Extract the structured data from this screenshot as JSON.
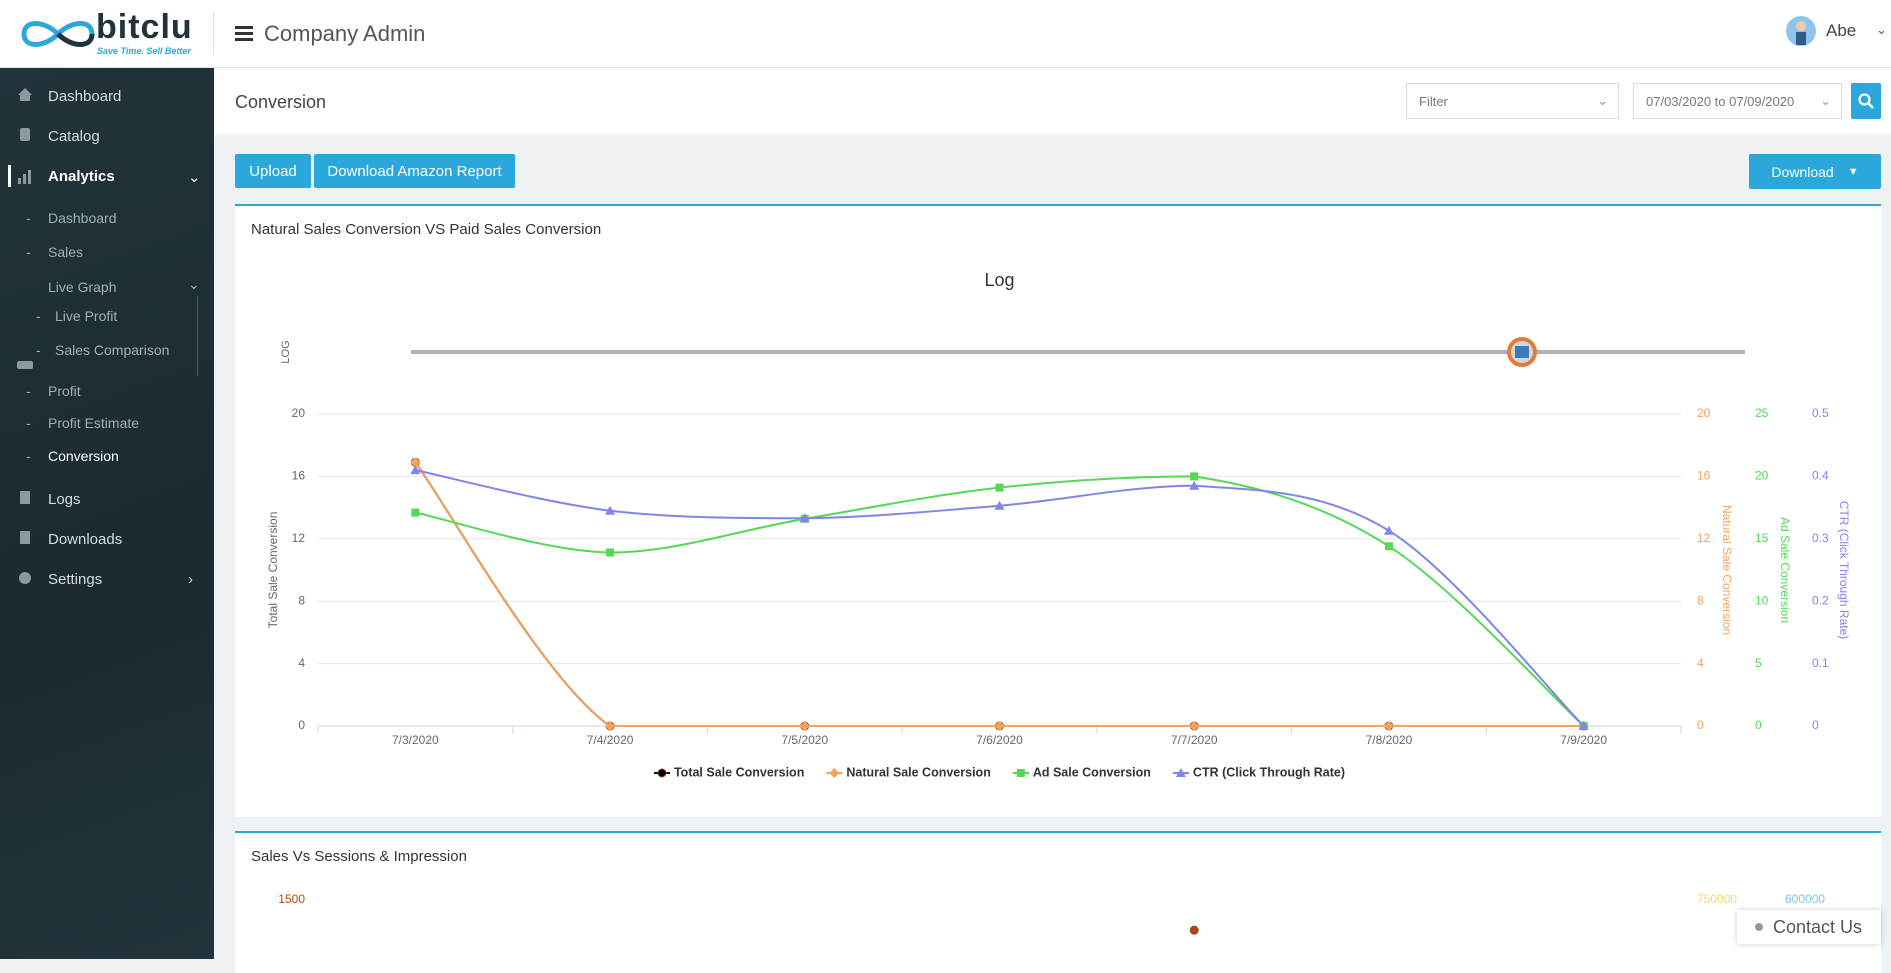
{
  "header": {
    "logo": "bitclu",
    "tagline": "Save Time. Sell Better",
    "title": "Company Admin",
    "user": "Abe"
  },
  "sidebar": {
    "items": [
      {
        "label": "Dashboard"
      },
      {
        "label": "Catalog"
      },
      {
        "label": "Analytics",
        "children": [
          {
            "label": "Dashboard"
          },
          {
            "label": "Sales"
          },
          {
            "label": "Live Graph",
            "children": [
              {
                "label": "Live Profit"
              },
              {
                "label": "Sales Comparison"
              }
            ]
          },
          {
            "label": "Profit"
          },
          {
            "label": "Profit Estimate"
          },
          {
            "label": "Conversion"
          }
        ]
      },
      {
        "label": "Logs"
      },
      {
        "label": "Downloads"
      },
      {
        "label": "Settings"
      }
    ]
  },
  "page": {
    "title": "Conversion",
    "filter": "Filter",
    "date_range": "07/03/2020 to 07/09/2020",
    "buttons": [
      "Upload",
      "Download Amazon Report"
    ],
    "download": "Download",
    "contact": "Contact Us"
  },
  "chart_data": [
    {
      "type": "line",
      "title": "Natural Sales Conversion VS Paid Sales Conversion",
      "subtitle": "Log",
      "slider_label": "LOG",
      "categories": [
        "7/3/2020",
        "7/4/2020",
        "7/5/2020",
        "7/6/2020",
        "7/7/2020",
        "7/8/2020",
        "7/9/2020"
      ],
      "ylabel": "Total Sale Conversion",
      "ylim": [
        0,
        20
      ],
      "yticks": [
        0,
        4,
        8,
        12,
        16,
        20
      ],
      "ycolor": "#666666",
      "y2label": "Natural Sale Conversion",
      "y2lim": [
        0,
        20
      ],
      "y2ticks": [
        0,
        4,
        8,
        12,
        16,
        20
      ],
      "y2color": "#f7a35c",
      "y3label": "Ad Sale Conversion",
      "y3lim": [
        0,
        25
      ],
      "y3ticks": [
        0,
        5,
        10,
        15,
        20,
        25
      ],
      "y3color": "#55d855",
      "y4label": "CTR (Click Through Rate)",
      "y4lim": [
        0,
        0.5
      ],
      "y4ticks": [
        0,
        0.1,
        0.2,
        0.3,
        0.4,
        0.5
      ],
      "y4color": "#8085e9",
      "grid": true,
      "series": [
        {
          "name": "Total Sale Conversion",
          "color": "#000000",
          "marker": "circle",
          "axis": "y",
          "values": [
            16.9,
            0,
            0,
            0,
            0,
            0,
            0
          ]
        },
        {
          "name": "Natural Sale Conversion",
          "color": "#f7a35c",
          "marker": "diamond",
          "axis": "y2",
          "values": [
            16.9,
            0,
            0,
            0,
            0,
            0,
            0
          ]
        },
        {
          "name": "Ad Sale Conversion",
          "color": "#55d855",
          "marker": "square",
          "axis": "y3",
          "values": [
            17.1,
            13.9,
            16.6,
            19.1,
            20,
            14.4,
            0
          ]
        },
        {
          "name": "CTR (Click Through Rate)",
          "color": "#8085e9",
          "marker": "triangle",
          "axis": "y4",
          "values": [
            0.41,
            0.345,
            0.333,
            0.353,
            0.385,
            0.313,
            0
          ]
        }
      ]
    },
    {
      "type": "line",
      "title": "Sales Vs Sessions & Impression",
      "ylim": [
        0,
        1500
      ],
      "yticks": [
        1500
      ],
      "ycolor": "#b5480a",
      "y2lim": [
        0,
        750000
      ],
      "y2ticks": [
        750000
      ],
      "y2color": "#f5d76e",
      "y3lim": [
        0,
        600000
      ],
      "y3ticks": [
        600000
      ],
      "y3color": "#7cc4f0",
      "series": [
        {
          "color": "#b5480a",
          "marker": "circle",
          "axis": "y",
          "values": [
            null,
            null,
            null,
            null,
            1355,
            null,
            null
          ]
        }
      ]
    }
  ]
}
